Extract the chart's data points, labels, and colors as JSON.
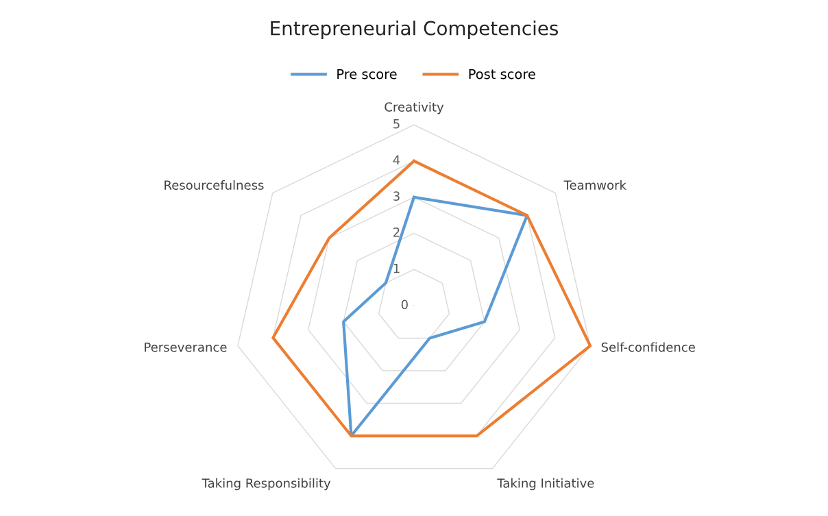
{
  "chart_data": {
    "type": "radar",
    "title": "Entrepreneurial Competencies",
    "categories": [
      "Creativity",
      "Teamwork",
      "Self-confidence",
      "Taking Initiative",
      "Taking Responsibility",
      "Perseverance",
      "Resourcefulness"
    ],
    "series": [
      {
        "name": "Pre score",
        "color": "#5b9bd5",
        "values": [
          3,
          4,
          2,
          1,
          4,
          2,
          1
        ]
      },
      {
        "name": "Post score",
        "color": "#ed7d31",
        "values": [
          4,
          4,
          5,
          4,
          4,
          4,
          3
        ]
      }
    ],
    "ylim": [
      0,
      5
    ],
    "yticks": [
      0,
      1,
      2,
      3,
      4,
      5
    ],
    "grid": true,
    "legend": "top",
    "marker": "none"
  }
}
